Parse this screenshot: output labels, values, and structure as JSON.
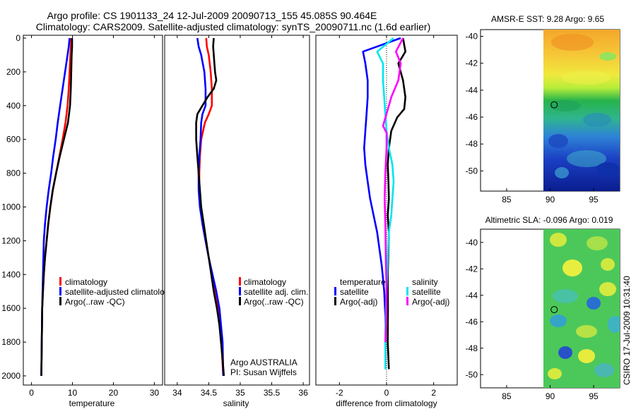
{
  "figure": {
    "title_line1": "Argo profile: CS 1901133_24 12-Jul-2009 20090713_155 45.085S 90.464E",
    "title_line2": "Climatology: CARS2009. Satellite-adjusted climatology: synTS_20090711.nc (1.6d earlier)",
    "side_label": "CSIRO 17-Jul-2009 10:31:40",
    "argo_agency": "Argo AUSTRALIA",
    "argo_pi": "PI: Susan Wijffels"
  },
  "colors": {
    "climatology": "#ff0000",
    "satellite": "#0000ff",
    "argo": "#000000",
    "cyan": "#00e5ee",
    "magenta": "#ff00ff"
  },
  "chart_data": [
    {
      "type": "line",
      "id": "temperature",
      "xlabel": "temperature",
      "ylabel": "",
      "xlim": [
        -2,
        32
      ],
      "ylim": [
        2050,
        0
      ],
      "xticks": [
        0,
        10,
        20,
        30
      ],
      "yticks": [
        0,
        200,
        400,
        600,
        800,
        1000,
        1200,
        1400,
        1600,
        1800,
        2000
      ],
      "legend": [
        "climatology",
        "satellite-adjusted climatolo",
        "Argo(..raw -QC)"
      ],
      "series": [
        {
          "name": "climatology",
          "color": "climatology",
          "x": [
            9.7,
            9.6,
            9.5,
            9.3,
            9.1,
            8.8,
            8.3,
            7.6,
            6.8,
            6.0,
            5.2,
            4.6,
            4.1,
            3.7,
            3.3,
            3.0,
            2.8,
            2.6,
            2.5,
            2.4
          ],
          "y": [
            0,
            50,
            100,
            200,
            300,
            400,
            500,
            600,
            700,
            800,
            900,
            1000,
            1100,
            1200,
            1300,
            1400,
            1500,
            1600,
            1800,
            2000
          ]
        },
        {
          "name": "satellite-adjusted climatology",
          "color": "satellite",
          "x": [
            9.3,
            9.1,
            8.8,
            8.2,
            7.6,
            7.0,
            6.4,
            5.9,
            5.3,
            4.8,
            4.2,
            3.7,
            3.3,
            3.0,
            2.8,
            2.6,
            2.5,
            2.4
          ],
          "y": [
            0,
            50,
            100,
            200,
            300,
            400,
            500,
            600,
            700,
            800,
            900,
            1000,
            1100,
            1200,
            1400,
            1600,
            1800,
            2000
          ]
        },
        {
          "name": "Argo(..raw -QC)",
          "color": "argo",
          "x": [
            9.9,
            9.9,
            9.8,
            9.7,
            9.6,
            9.4,
            8.9,
            7.9,
            6.9,
            6.0,
            5.2,
            4.6,
            4.1,
            3.7,
            3.3,
            3.0,
            2.8,
            2.6,
            2.5,
            2.4
          ],
          "y": [
            0,
            50,
            100,
            200,
            300,
            400,
            500,
            600,
            700,
            800,
            900,
            1000,
            1100,
            1200,
            1300,
            1400,
            1500,
            1600,
            1800,
            2000
          ]
        }
      ]
    },
    {
      "type": "line",
      "id": "salinity",
      "xlabel": "salinity",
      "xlim": [
        33.8,
        36.1
      ],
      "ylim": [
        2050,
        0
      ],
      "xticks": [
        34,
        34.5,
        35,
        35.5,
        36
      ],
      "xticklabels": [
        "34",
        "34.5",
        "35",
        "35.5",
        "36"
      ],
      "legend": [
        "climatology",
        "satellite adj. clim.",
        "Argo(..raw -QC)"
      ],
      "series": [
        {
          "name": "climatology",
          "color": "climatology",
          "x": [
            34.46,
            34.47,
            34.5,
            34.53,
            34.55,
            34.55,
            34.5,
            34.44,
            34.38,
            34.36,
            34.35,
            34.35,
            34.37,
            34.4,
            34.45,
            34.5,
            34.55,
            34.6,
            34.65,
            34.7,
            34.73
          ],
          "y": [
            0,
            50,
            100,
            200,
            300,
            400,
            450,
            500,
            600,
            700,
            800,
            900,
            1000,
            1100,
            1200,
            1300,
            1400,
            1500,
            1600,
            1800,
            2000
          ]
        },
        {
          "name": "satellite adj. clim.",
          "color": "satellite",
          "x": [
            34.32,
            34.34,
            34.38,
            34.43,
            34.45,
            34.45,
            34.4,
            34.38,
            34.37,
            34.35,
            34.34,
            34.34,
            34.36,
            34.4,
            34.45,
            34.5,
            34.56,
            34.62,
            34.67,
            34.72,
            34.73
          ],
          "y": [
            0,
            50,
            100,
            200,
            300,
            400,
            450,
            500,
            600,
            700,
            800,
            900,
            1000,
            1100,
            1200,
            1300,
            1400,
            1500,
            1600,
            1800,
            2000
          ]
        },
        {
          "name": "Argo(..raw -QC)",
          "color": "argo",
          "x": [
            34.58,
            34.57,
            34.58,
            34.6,
            34.62,
            34.58,
            34.48,
            34.32,
            34.3,
            34.3,
            34.32,
            34.34,
            34.36,
            34.38,
            34.42,
            34.46,
            34.5,
            34.54,
            34.58,
            34.63,
            34.67,
            34.72,
            34.74
          ],
          "y": [
            0,
            50,
            100,
            200,
            250,
            300,
            350,
            450,
            500,
            600,
            700,
            800,
            900,
            1000,
            1100,
            1200,
            1300,
            1400,
            1500,
            1600,
            1700,
            1900,
            2000
          ]
        }
      ]
    },
    {
      "type": "line",
      "id": "difference",
      "xlabel": "difference from climatology",
      "xlim": [
        -3,
        3
      ],
      "ylim": [
        2050,
        0
      ],
      "xticks": [
        -2,
        0,
        2
      ],
      "legend_groups": [
        {
          "title": "temperature",
          "items": [
            "satellite",
            "Argo(-adj)"
          ]
        },
        {
          "title": "salinity",
          "items": [
            "satellite",
            "Argo(-adj)"
          ]
        }
      ],
      "series": [
        {
          "name": "temperature satellite",
          "color": "satellite",
          "x": [
            0.6,
            -1.0,
            -0.9,
            -0.8,
            -0.8,
            -0.85,
            -0.9,
            -0.95,
            -0.9,
            -0.8,
            -0.7,
            -0.55,
            -0.4,
            -0.3,
            -0.2,
            -0.1,
            -0.05,
            -0.05,
            -0.05
          ],
          "y": [
            0,
            80,
            150,
            250,
            350,
            450,
            550,
            650,
            750,
            850,
            950,
            1050,
            1150,
            1250,
            1350,
            1500,
            1650,
            1800,
            1960
          ]
        },
        {
          "name": "temperature Argo(-adj)",
          "color": "argo",
          "x": [
            0.7,
            0.8,
            0.5,
            0.7,
            0.8,
            0.75,
            0.45,
            0.2,
            0.1,
            0.05,
            0.08,
            0.1,
            0.05,
            0.1,
            0.08,
            0.05,
            0.06,
            0.05,
            0.1
          ],
          "y": [
            0,
            80,
            150,
            250,
            350,
            420,
            470,
            550,
            650,
            750,
            850,
            950,
            1050,
            1150,
            1250,
            1400,
            1600,
            1800,
            1960
          ]
        },
        {
          "name": "salinity satellite",
          "color": "cyan",
          "x": [
            0.3,
            -0.4,
            -0.15,
            -0.15,
            -0.1,
            -0.05,
            0.0,
            0.1,
            0.25,
            0.3,
            0.25,
            0.2,
            0.1,
            0.05,
            0.0,
            -0.05,
            -0.05
          ],
          "y": [
            0,
            80,
            150,
            250,
            350,
            450,
            550,
            650,
            750,
            850,
            950,
            1050,
            1150,
            1300,
            1500,
            1700,
            1960
          ]
        },
        {
          "name": "salinity Argo(-adj)",
          "color": "magenta",
          "x": [
            0.7,
            0.4,
            0.6,
            0.5,
            0.2,
            0.1,
            -0.15,
            0.0,
            0.0,
            -0.05,
            -0.08,
            -0.05,
            -0.03,
            0.0,
            -0.02,
            -0.05
          ],
          "y": [
            0,
            80,
            150,
            250,
            350,
            400,
            520,
            560,
            650,
            800,
            950,
            1100,
            1300,
            1500,
            1700,
            1800
          ]
        }
      ]
    },
    {
      "type": "heatmap",
      "id": "sst_map",
      "title": "AMSR-E SST: 9.28 Argo: 9.65",
      "xlim": [
        82,
        98
      ],
      "ylim": [
        -51.5,
        -39.5
      ],
      "xticks": [
        85,
        90,
        95
      ],
      "yticks": [
        -40,
        -42,
        -44,
        -46,
        -48,
        -50
      ],
      "data_lon_range": [
        90,
        98
      ],
      "marker": {
        "lon": 90.464,
        "lat": -45.085
      }
    },
    {
      "type": "heatmap",
      "id": "sla_map",
      "title": "Altimetric SLA: -0.096 Argo: 0.019",
      "xlim": [
        82,
        98
      ],
      "ylim": [
        -51,
        -39
      ],
      "xticks": [
        85,
        90,
        95
      ],
      "yticks": [
        -40,
        -42,
        -44,
        -46,
        -48,
        -50
      ],
      "data_lon_range": [
        90,
        98
      ],
      "marker": {
        "lon": 90.464,
        "lat": -45.085
      }
    }
  ]
}
